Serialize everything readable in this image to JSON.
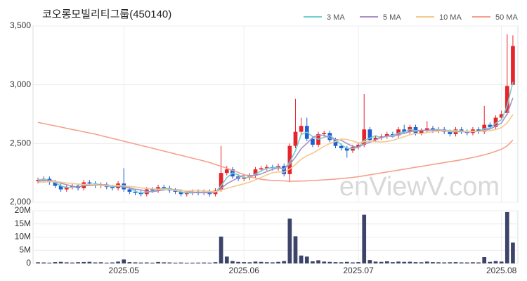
{
  "chart_data": [
    {
      "type": "candlestick",
      "title": "코오롱모빌리티그룹(450140)",
      "watermark": "enViewV.com",
      "categories": [
        null,
        null,
        null,
        null,
        null,
        null,
        null,
        null,
        null,
        null,
        null,
        null,
        null,
        null,
        null,
        "2025.05",
        null,
        null,
        null,
        null,
        null,
        null,
        null,
        null,
        null,
        null,
        null,
        null,
        null,
        null,
        null,
        null,
        null,
        null,
        null,
        null,
        "2025.06",
        null,
        null,
        null,
        null,
        null,
        null,
        null,
        null,
        null,
        null,
        null,
        null,
        null,
        null,
        null,
        null,
        null,
        null,
        null,
        "2025.07",
        null,
        null,
        null,
        null,
        null,
        null,
        null,
        null,
        null,
        null,
        null,
        null,
        null,
        null,
        null,
        null,
        null,
        null,
        null,
        null,
        null,
        null,
        null,
        null,
        "2025.08",
        null,
        null
      ],
      "open": [
        2180,
        2190,
        2200,
        2170,
        2140,
        2110,
        2130,
        2140,
        2120,
        2170,
        2160,
        2140,
        2150,
        2130,
        2120,
        2160,
        2110,
        2090,
        2080,
        2070,
        2110,
        2100,
        2130,
        2120,
        2100,
        2090,
        2070,
        2080,
        2090,
        2080,
        2090,
        2070,
        2110,
        2250,
        2280,
        2220,
        2200,
        2210,
        2230,
        2280,
        2290,
        2300,
        2290,
        2310,
        2240,
        2480,
        2600,
        2650,
        2540,
        2490,
        2580,
        2590,
        2530,
        2480,
        2460,
        2440,
        2470,
        2490,
        2620,
        2530,
        2550,
        2560,
        2580,
        2570,
        2620,
        2600,
        2640,
        2590,
        2610,
        2630,
        2610,
        2620,
        2600,
        2580,
        2620,
        2600,
        2590,
        2620,
        2600,
        2660,
        2640,
        2720,
        2760,
        3000
      ],
      "high": [
        2210,
        2220,
        2220,
        2190,
        2160,
        2150,
        2160,
        2160,
        2190,
        2190,
        2180,
        2170,
        2170,
        2150,
        2180,
        2290,
        2130,
        2110,
        2100,
        2130,
        2130,
        2150,
        2150,
        2140,
        2120,
        2110,
        2100,
        2110,
        2110,
        2110,
        2110,
        2120,
        2480,
        2310,
        2300,
        2240,
        2230,
        2250,
        2300,
        2310,
        2320,
        2320,
        2330,
        2330,
        2500,
        2880,
        2720,
        2720,
        2560,
        2600,
        2610,
        2610,
        2550,
        2500,
        2480,
        2490,
        2510,
        2920,
        2640,
        2570,
        2580,
        2600,
        2600,
        2640,
        2660,
        2660,
        2660,
        2630,
        2690,
        2650,
        2640,
        2640,
        2620,
        2640,
        2640,
        2620,
        2640,
        2640,
        2820,
        2680,
        2740,
        2780,
        3430,
        3420
      ],
      "low": [
        2160,
        2170,
        2150,
        2120,
        2090,
        2090,
        2110,
        2100,
        2100,
        2140,
        2120,
        2120,
        2110,
        2100,
        2100,
        2090,
        2070,
        2060,
        2050,
        2050,
        2080,
        2080,
        2100,
        2080,
        2070,
        2050,
        2050,
        2060,
        2060,
        2060,
        2050,
        2050,
        2090,
        2230,
        2200,
        2180,
        2180,
        2190,
        2210,
        2260,
        2270,
        2270,
        2270,
        2220,
        2170,
        2460,
        2580,
        2520,
        2470,
        2470,
        2560,
        2510,
        2460,
        2440,
        2380,
        2420,
        2450,
        2470,
        2510,
        2510,
        2530,
        2540,
        2550,
        2550,
        2580,
        2580,
        2570,
        2570,
        2590,
        2590,
        2590,
        2580,
        2560,
        2560,
        2580,
        2570,
        2570,
        2580,
        2580,
        2620,
        2620,
        2700,
        2740,
        3010
      ],
      "close": [
        2190,
        2200,
        2170,
        2140,
        2110,
        2130,
        2140,
        2120,
        2170,
        2160,
        2140,
        2150,
        2130,
        2120,
        2160,
        2110,
        2090,
        2080,
        2070,
        2110,
        2100,
        2130,
        2120,
        2100,
        2090,
        2070,
        2080,
        2090,
        2080,
        2090,
        2070,
        2100,
        2250,
        2280,
        2220,
        2200,
        2210,
        2230,
        2280,
        2290,
        2300,
        2290,
        2310,
        2240,
        2480,
        2600,
        2650,
        2540,
        2490,
        2580,
        2590,
        2530,
        2480,
        2460,
        2440,
        2470,
        2490,
        2620,
        2530,
        2550,
        2560,
        2580,
        2570,
        2620,
        2600,
        2640,
        2590,
        2610,
        2630,
        2610,
        2620,
        2600,
        2580,
        2620,
        2600,
        2590,
        2620,
        2600,
        2660,
        2640,
        2720,
        2750,
        2990,
        3330
      ],
      "up_color": "#e8242b",
      "down_color": "#1f5fd1",
      "series": [
        {
          "name": "3 MA",
          "color": "#6fcfcf",
          "values": [
            2190,
            2195,
            2187,
            2170,
            2140,
            2127,
            2127,
            2130,
            2143,
            2150,
            2157,
            2150,
            2140,
            2133,
            2137,
            2130,
            2120,
            2093,
            2080,
            2087,
            2093,
            2113,
            2117,
            2117,
            2103,
            2087,
            2080,
            2080,
            2083,
            2087,
            2080,
            2087,
            2140,
            2210,
            2250,
            2233,
            2210,
            2213,
            2240,
            2267,
            2290,
            2293,
            2300,
            2280,
            2343,
            2440,
            2577,
            2597,
            2560,
            2537,
            2553,
            2567,
            2533,
            2490,
            2460,
            2457,
            2467,
            2527,
            2547,
            2567,
            2547,
            2563,
            2570,
            2590,
            2597,
            2620,
            2610,
            2613,
            2610,
            2617,
            2620,
            2610,
            2600,
            2600,
            2600,
            2603,
            2603,
            2603,
            2627,
            2633,
            2673,
            2703,
            2820,
            3023
          ]
        },
        {
          "name": "5 MA",
          "color": "#a991c6",
          "values": [
            2180,
            2185,
            2185,
            2180,
            2162,
            2150,
            2138,
            2128,
            2142,
            2144,
            2146,
            2148,
            2150,
            2140,
            2140,
            2134,
            2122,
            2112,
            2106,
            2092,
            2090,
            2098,
            2106,
            2112,
            2108,
            2102,
            2092,
            2086,
            2082,
            2082,
            2082,
            2086,
            2118,
            2158,
            2184,
            2210,
            2232,
            2228,
            2228,
            2242,
            2262,
            2280,
            2294,
            2286,
            2324,
            2384,
            2456,
            2502,
            2552,
            2572,
            2570,
            2546,
            2534,
            2528,
            2500,
            2476,
            2468,
            2496,
            2510,
            2532,
            2550,
            2566,
            2558,
            2576,
            2586,
            2602,
            2604,
            2612,
            2614,
            2616,
            2612,
            2614,
            2610,
            2606,
            2604,
            2598,
            2602,
            2606,
            2614,
            2624,
            2648,
            2674,
            2752,
            2888
          ]
        },
        {
          "name": "10 MA",
          "color": "#f3c98f",
          "values": [
            2170,
            2172,
            2175,
            2176,
            2172,
            2165,
            2160,
            2155,
            2152,
            2153,
            2148,
            2143,
            2140,
            2141,
            2144,
            2140,
            2135,
            2131,
            2123,
            2118,
            2114,
            2112,
            2111,
            2109,
            2102,
            2098,
            2097,
            2098,
            2099,
            2097,
            2094,
            2091,
            2103,
            2119,
            2132,
            2145,
            2158,
            2172,
            2191,
            2211,
            2234,
            2253,
            2259,
            2257,
            2283,
            2322,
            2366,
            2397,
            2418,
            2447,
            2476,
            2500,
            2517,
            2539,
            2535,
            2522,
            2507,
            2515,
            2519,
            2516,
            2513,
            2518,
            2527,
            2543,
            2558,
            2575,
            2585,
            2584,
            2594,
            2600,
            2606,
            2608,
            2609,
            2609,
            2607,
            2602,
            2605,
            2604,
            2607,
            2610,
            2620,
            2635,
            2676,
            2747
          ]
        },
        {
          "name": "50 MA",
          "color": "#f4a08c",
          "values": [
            2680,
            2670,
            2660,
            2650,
            2640,
            2630,
            2620,
            2610,
            2600,
            2590,
            2580,
            2568,
            2556,
            2544,
            2532,
            2520,
            2508,
            2496,
            2484,
            2472,
            2460,
            2448,
            2436,
            2424,
            2412,
            2400,
            2388,
            2376,
            2364,
            2352,
            2338,
            2322,
            2306,
            2290,
            2272,
            2254,
            2236,
            2220,
            2206,
            2196,
            2190,
            2186,
            2184,
            2182,
            2180,
            2180,
            2181,
            2183,
            2185,
            2188,
            2191,
            2194,
            2198,
            2202,
            2207,
            2212,
            2218,
            2226,
            2234,
            2242,
            2250,
            2258,
            2266,
            2274,
            2282,
            2290,
            2298,
            2306,
            2314,
            2322,
            2330,
            2338,
            2346,
            2354,
            2362,
            2372,
            2382,
            2392,
            2404,
            2418,
            2434,
            2452,
            2480,
            2530
          ]
        }
      ],
      "ylim": [
        2000,
        3500
      ],
      "yticks": [
        {
          "value": 2000,
          "label": "2,000"
        },
        {
          "value": 2500,
          "label": "2,500"
        },
        {
          "value": 3000,
          "label": "3,000"
        },
        {
          "value": 3500,
          "label": "3,500"
        }
      ],
      "grid": true
    },
    {
      "type": "bar",
      "color": "#3d4469",
      "values": [
        450000,
        380000,
        300000,
        520000,
        610000,
        420000,
        350000,
        480000,
        560000,
        620000,
        390000,
        450000,
        300000,
        380000,
        700000,
        1500000,
        500000,
        420000,
        350000,
        380000,
        300000,
        560000,
        420000,
        380000,
        300000,
        350000,
        280000,
        300000,
        320000,
        350000,
        300000,
        480000,
        10200000,
        2600000,
        900000,
        600000,
        500000,
        450000,
        700000,
        600000,
        480000,
        420000,
        600000,
        900000,
        17000000,
        10300000,
        3000000,
        2600000,
        800000,
        1200000,
        700000,
        600000,
        500000,
        450000,
        600000,
        400000,
        500000,
        18500000,
        1300000,
        700000,
        600000,
        800000,
        500000,
        700000,
        600000,
        650000,
        500000,
        450000,
        700000,
        500000,
        450000,
        400000,
        450000,
        500000,
        400000,
        380000,
        450000,
        400000,
        2400000,
        600000,
        900000,
        700000,
        19500000,
        7900000
      ],
      "ylim": [
        0,
        20000000
      ],
      "yticks": [
        0,
        {
          "value": 5000000,
          "label": "5M"
        },
        {
          "value": 10000000,
          "label": "10M"
        },
        {
          "value": 15000000,
          "label": "15M"
        },
        {
          "value": 20000000,
          "label": "20M"
        }
      ],
      "grid": true
    }
  ]
}
